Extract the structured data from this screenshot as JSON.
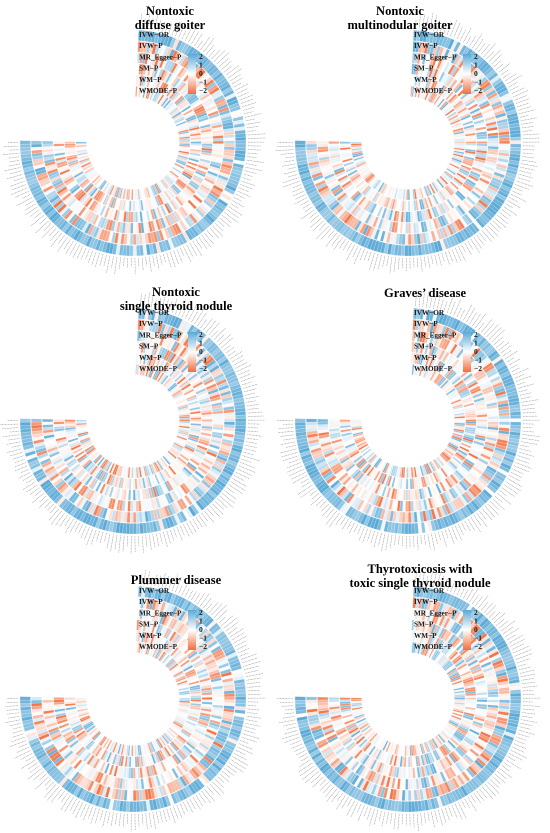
{
  "chart_data": [
    {
      "type": "heatmap",
      "title": [
        "Nontoxic",
        "diffuse goiter"
      ],
      "rings": [
        "IVW−OR",
        "IVW−P",
        "MR_Egger−P",
        "SM−P",
        "WM−P",
        "WMODE−P"
      ],
      "colorbar": {
        "ticks": [
          "2",
          "1",
          "0",
          "−1",
          "−2"
        ],
        "range": [
          -2,
          2
        ]
      }
    },
    {
      "type": "heatmap",
      "title": [
        "Nontoxic",
        "multinodular goiter"
      ],
      "rings": [
        "IVW−OR",
        "IVW−P",
        "MR_Egger−P",
        "SM−P",
        "WM−P",
        "WMODE−P"
      ],
      "colorbar": {
        "ticks": [
          "2",
          "1",
          "0",
          "−1",
          "−2"
        ],
        "range": [
          -2,
          2
        ]
      }
    },
    {
      "type": "heatmap",
      "title": [
        "Nontoxic",
        "single thyroid nodule"
      ],
      "rings": [
        "IVW−OR",
        "IVW−P",
        "MR_Egger−P",
        "SM−P",
        "WM−P",
        "WMODE−P"
      ],
      "colorbar": {
        "ticks": [
          "2",
          "1",
          "0",
          "−1",
          "−2"
        ],
        "range": [
          -2,
          2
        ]
      }
    },
    {
      "type": "heatmap",
      "title": [
        "Graves’ disease"
      ],
      "rings": [
        "IVW−OR",
        "IVW−P",
        "MR_Egger−P",
        "SM−P",
        "WM−P",
        "WMODE−P"
      ],
      "colorbar": {
        "ticks": [
          "2",
          "1",
          "0",
          "−1",
          "−2"
        ],
        "range": [
          -2,
          2
        ]
      }
    },
    {
      "type": "heatmap",
      "title": [
        "Plummer disease"
      ],
      "rings": [
        "IVW−OR",
        "IVW−P",
        "MR_Egger−P",
        "SM−P",
        "WM−P",
        "WMODE−P"
      ],
      "colorbar": {
        "ticks": [
          "2",
          "1",
          "0",
          "−1",
          "−2"
        ],
        "range": [
          -2,
          2
        ]
      }
    },
    {
      "type": "heatmap",
      "title": [
        "Thyrotoxicosis with",
        "toxic single thyroid nodule"
      ],
      "rings": [
        "IVW−OR",
        "IVW−P",
        "MR_Egger−P",
        "SM−P",
        "WM−P",
        "WMODE−P"
      ],
      "colorbar": {
        "ticks": [
          "2",
          "1",
          "0",
          "−1",
          "−2"
        ],
        "range": [
          -2,
          2
        ]
      }
    }
  ],
  "colors": {
    "high": "#5aa9d6",
    "mid": "#ffffff",
    "low": "#f26d3d"
  }
}
